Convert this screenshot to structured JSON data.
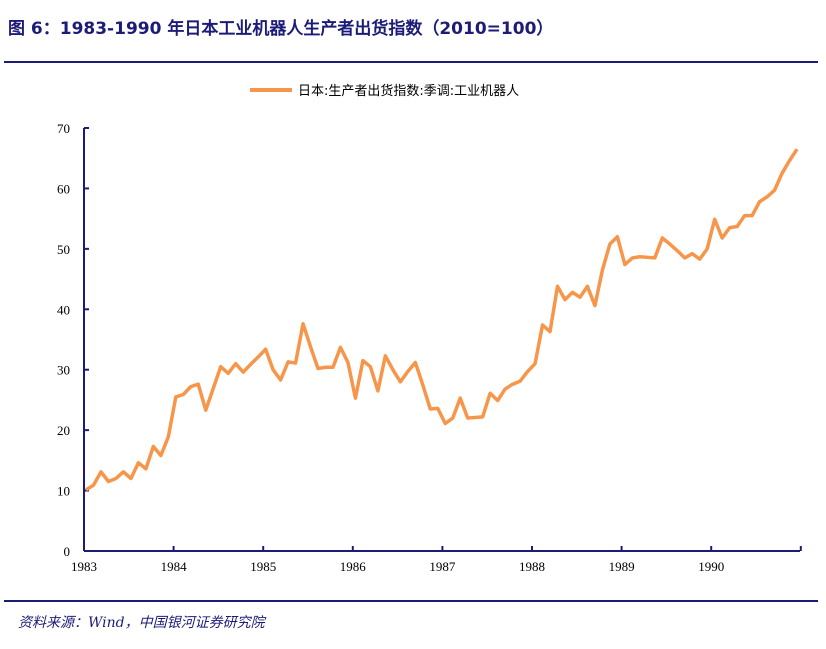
{
  "title": "图 6：1983-1990 年日本工业机器人生产者出货指数（2010=100）",
  "source": "资料来源：Wind，中国银河证券研究院",
  "colors": {
    "line": "#F7964A",
    "axis": "#1c1c78"
  },
  "chart_data": {
    "type": "line",
    "title": "1983-1990 年日本工业机器人生产者出货指数（2010=100）",
    "xlabel": "",
    "ylabel": "",
    "ylim": [
      0,
      70
    ],
    "yticks": [
      "0",
      "10",
      "20",
      "30",
      "40",
      "50",
      "60",
      "70"
    ],
    "xticks": [
      "1983",
      "1984",
      "1985",
      "1986",
      "1987",
      "1988",
      "1989",
      "1990"
    ],
    "legend_position": "top-center",
    "grid": false,
    "x_start": "1983-01",
    "x_frequency": "monthly",
    "series": [
      {
        "name": "日本:生产者出货指数:季调:工业机器人",
        "values": [
          10.1,
          10.9,
          13.1,
          11.5,
          12.0,
          13.1,
          12.0,
          14.6,
          13.6,
          17.3,
          15.8,
          18.9,
          25.5,
          25.9,
          27.2,
          27.6,
          23.3,
          26.9,
          30.5,
          29.4,
          31.0,
          29.6,
          30.9,
          32.1,
          33.4,
          30.0,
          28.3,
          31.3,
          31.1,
          37.6,
          33.8,
          30.2,
          30.4,
          30.4,
          33.7,
          31.2,
          25.3,
          31.5,
          30.5,
          26.5,
          32.3,
          30.0,
          28.0,
          29.7,
          31.2,
          27.5,
          23.5,
          23.6,
          21.1,
          22.0,
          25.3,
          22.0,
          22.1,
          22.2,
          26.1,
          24.9,
          26.8,
          27.6,
          28.1,
          29.7,
          31.0,
          37.4,
          36.3,
          43.8,
          41.6,
          42.8,
          42.0,
          43.8,
          40.6,
          46.5,
          50.8,
          52.0,
          47.4,
          48.5,
          48.7,
          48.6,
          48.5,
          51.8,
          50.8,
          49.7,
          48.5,
          49.2,
          48.3,
          50.0,
          54.9,
          51.8,
          53.5,
          53.7,
          55.5,
          55.5,
          57.8,
          58.6,
          59.7,
          62.5,
          64.6,
          66.5
        ]
      }
    ]
  }
}
